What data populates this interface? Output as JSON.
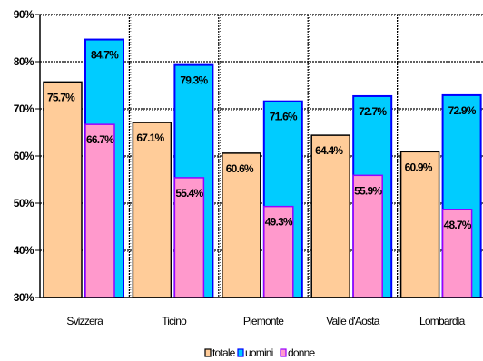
{
  "chart_data": {
    "type": "bar",
    "categories": [
      "Svizzera",
      "Ticino",
      "Piemonte",
      "Valle d'Aosta",
      "Lombardia"
    ],
    "series": [
      {
        "name": "totale",
        "values": [
          75.7,
          67.1,
          60.6,
          64.4,
          60.9
        ],
        "labels": [
          "75.7%",
          "67.1%",
          "60.6%",
          "64.4%",
          "60.9%"
        ]
      },
      {
        "name": "uomini",
        "values": [
          84.7,
          79.3,
          71.6,
          72.7,
          72.9
        ],
        "labels": [
          "84.7%",
          "79.3%",
          "71.6%",
          "72.7%",
          "72.9%"
        ]
      },
      {
        "name": "donne",
        "values": [
          66.7,
          55.4,
          49.3,
          55.9,
          48.7
        ],
        "labels": [
          "66.7%",
          "55.4%",
          "49.3%",
          "55.9%",
          "48.7%"
        ]
      }
    ],
    "ylim": [
      30,
      90
    ],
    "yticks": [
      30,
      40,
      50,
      60,
      70,
      80,
      90
    ],
    "ytick_labels": [
      "30%",
      "40%",
      "50%",
      "60%",
      "70%",
      "80%",
      "90%"
    ],
    "grid": true,
    "legend_position": "bottom"
  },
  "colors": {
    "totale": "#ffcc99",
    "uomini": "#00ccff",
    "donne": "#ff99cc",
    "totale_border": "#000000",
    "uomini_border": "#0000ff",
    "donne_border": "#9900ff"
  }
}
